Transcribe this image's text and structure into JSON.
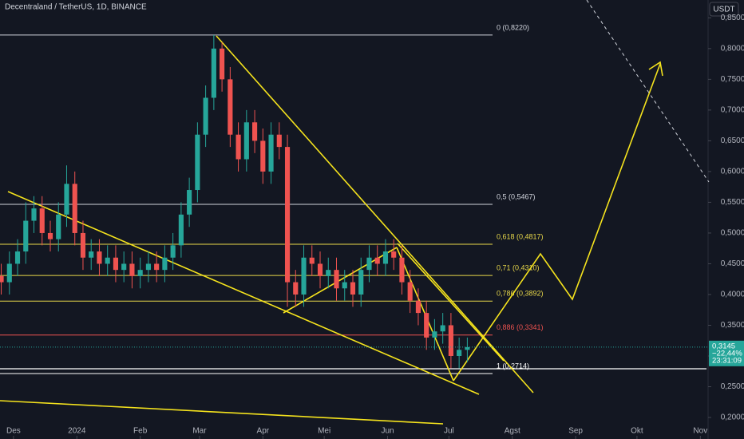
{
  "chart_data": {
    "type": "candlestick",
    "title": "Decentraland / TetherUS, 1D, BINANCE",
    "currency": "USDT",
    "up_color": "#26a69a",
    "down_color": "#ef5350",
    "xlim": [
      -6.6,
      339
    ],
    "ylim": [
      0.165,
      0.879
    ],
    "xticks": [
      {
        "value": 0,
        "label": "Des"
      },
      {
        "value": 31,
        "label": "2024"
      },
      {
        "value": 62,
        "label": "Feb"
      },
      {
        "value": 91,
        "label": "Mar"
      },
      {
        "value": 122,
        "label": "Apr"
      },
      {
        "value": 152,
        "label": "Mei"
      },
      {
        "value": 183,
        "label": "Jun"
      },
      {
        "value": 213,
        "label": "Jul"
      },
      {
        "value": 244,
        "label": "Agst"
      },
      {
        "value": 275,
        "label": "Sep"
      },
      {
        "value": 305,
        "label": "Okt"
      },
      {
        "value": 336,
        "label": "Nov"
      }
    ],
    "yticks": [
      {
        "value": 0.2,
        "label": "0,2000"
      },
      {
        "value": 0.25,
        "label": "0,2500"
      },
      {
        "value": 0.3,
        "label": "0,3000"
      },
      {
        "value": 0.35,
        "label": "0,3500"
      },
      {
        "value": 0.4,
        "label": "0,4000"
      },
      {
        "value": 0.45,
        "label": "0,4500"
      },
      {
        "value": 0.5,
        "label": "0,5000"
      },
      {
        "value": 0.55,
        "label": "0,5500"
      },
      {
        "value": 0.6,
        "label": "0,6000"
      },
      {
        "value": 0.65,
        "label": "0,6500"
      },
      {
        "value": 0.7,
        "label": "0,7000"
      },
      {
        "value": 0.75,
        "label": "0,7500"
      },
      {
        "value": 0.8,
        "label": "0,8000"
      },
      {
        "value": 0.85,
        "label": "0,8500"
      }
    ],
    "candles": {
      "x": [
        -6,
        -2,
        2,
        6,
        10,
        14,
        18,
        22,
        26,
        30,
        34,
        38,
        42,
        46,
        50,
        54,
        58,
        62,
        66,
        70,
        74,
        78,
        82,
        86,
        90,
        94,
        98,
        102,
        106,
        110,
        114,
        118,
        122,
        126,
        130,
        134,
        138,
        142,
        146,
        150,
        154,
        158,
        162,
        166,
        170,
        174,
        178,
        182,
        186,
        190,
        194,
        198,
        202,
        206,
        210,
        214,
        218,
        222
      ],
      "open": [
        0.43,
        0.42,
        0.45,
        0.47,
        0.52,
        0.54,
        0.5,
        0.49,
        0.53,
        0.58,
        0.5,
        0.46,
        0.47,
        0.45,
        0.46,
        0.44,
        0.45,
        0.43,
        0.44,
        0.45,
        0.44,
        0.46,
        0.48,
        0.53,
        0.57,
        0.66,
        0.72,
        0.8,
        0.75,
        0.66,
        0.62,
        0.68,
        0.65,
        0.6,
        0.66,
        0.64,
        0.42,
        0.4,
        0.46,
        0.45,
        0.43,
        0.44,
        0.41,
        0.42,
        0.4,
        0.44,
        0.46,
        0.45,
        0.47,
        0.46,
        0.42,
        0.39,
        0.37,
        0.33,
        0.34,
        0.35,
        0.3,
        0.31
      ],
      "high": [
        0.45,
        0.47,
        0.49,
        0.55,
        0.56,
        0.56,
        0.52,
        0.55,
        0.61,
        0.6,
        0.52,
        0.49,
        0.49,
        0.48,
        0.48,
        0.47,
        0.47,
        0.46,
        0.47,
        0.47,
        0.48,
        0.5,
        0.55,
        0.59,
        0.68,
        0.74,
        0.822,
        0.81,
        0.77,
        0.68,
        0.7,
        0.7,
        0.67,
        0.68,
        0.68,
        0.66,
        0.44,
        0.48,
        0.48,
        0.47,
        0.46,
        0.46,
        0.44,
        0.44,
        0.46,
        0.48,
        0.48,
        0.49,
        0.49,
        0.48,
        0.44,
        0.41,
        0.39,
        0.36,
        0.37,
        0.37,
        0.33,
        0.33
      ],
      "low": [
        0.4,
        0.4,
        0.43,
        0.45,
        0.5,
        0.48,
        0.47,
        0.47,
        0.51,
        0.48,
        0.44,
        0.44,
        0.43,
        0.43,
        0.42,
        0.42,
        0.41,
        0.41,
        0.42,
        0.42,
        0.42,
        0.44,
        0.46,
        0.51,
        0.55,
        0.64,
        0.7,
        0.73,
        0.64,
        0.6,
        0.6,
        0.63,
        0.58,
        0.58,
        0.62,
        0.38,
        0.38,
        0.38,
        0.43,
        0.41,
        0.41,
        0.39,
        0.39,
        0.38,
        0.38,
        0.42,
        0.43,
        0.43,
        0.44,
        0.4,
        0.37,
        0.35,
        0.31,
        0.31,
        0.32,
        0.28,
        0.28,
        0.29
      ],
      "close": [
        0.42,
        0.45,
        0.47,
        0.52,
        0.54,
        0.5,
        0.49,
        0.53,
        0.58,
        0.5,
        0.46,
        0.47,
        0.45,
        0.46,
        0.44,
        0.45,
        0.43,
        0.44,
        0.45,
        0.44,
        0.46,
        0.48,
        0.53,
        0.57,
        0.66,
        0.72,
        0.8,
        0.75,
        0.66,
        0.62,
        0.68,
        0.65,
        0.6,
        0.66,
        0.64,
        0.42,
        0.4,
        0.46,
        0.45,
        0.43,
        0.44,
        0.41,
        0.42,
        0.4,
        0.44,
        0.46,
        0.45,
        0.47,
        0.46,
        0.42,
        0.39,
        0.37,
        0.33,
        0.34,
        0.35,
        0.3,
        0.31,
        0.3145
      ]
    },
    "fib_levels": [
      {
        "value": 0.822,
        "label": "0 (0,8220)",
        "color": "#d1d4dc"
      },
      {
        "value": 0.5467,
        "label": "0,5 (0,5467)",
        "color": "#d1d4dc"
      },
      {
        "value": 0.4817,
        "label": "0,618 (0,4817)",
        "color": "#e8d84a"
      },
      {
        "value": 0.431,
        "label": "0,71 (0,4310)",
        "color": "#e8d84a"
      },
      {
        "value": 0.3892,
        "label": "0,786 (0,3892)",
        "color": "#e8d84a"
      },
      {
        "value": 0.3341,
        "label": "0,886 (0,3341)",
        "color": "#ef5350"
      },
      {
        "value": 0.2714,
        "label": "1 (0,2714)",
        "color": "#ffffff"
      }
    ],
    "hlines": [
      0.2792
    ],
    "last_price": {
      "value": 0.3145,
      "label": "0,3145",
      "change": {
        "value": -22.44,
        "label": "−22,44%"
      },
      "countdown": "23:31:09"
    }
  }
}
